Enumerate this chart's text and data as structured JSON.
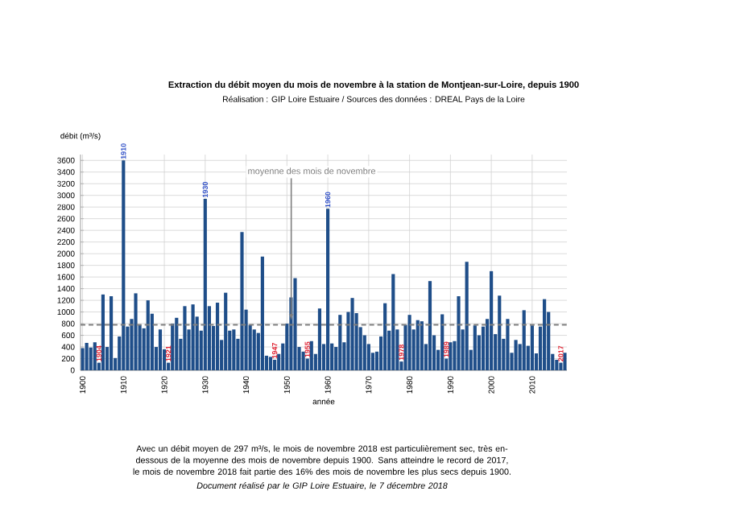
{
  "chart_data": {
    "type": "bar",
    "title": "Extraction du débit moyen du mois de novembre à la station de Montjean-sur-Loire, depuis 1900",
    "subtitle": "Réalisation : GIP Loire Estuaire / Sources des données : DREAL Pays de la Loire",
    "xlabel": "année",
    "ylabel": "débit (m³/s)",
    "x": [
      1900,
      1901,
      1902,
      1903,
      1904,
      1905,
      1906,
      1907,
      1908,
      1909,
      1910,
      1911,
      1912,
      1913,
      1914,
      1915,
      1916,
      1917,
      1918,
      1919,
      1920,
      1921,
      1922,
      1923,
      1924,
      1925,
      1926,
      1927,
      1928,
      1929,
      1930,
      1931,
      1932,
      1933,
      1934,
      1935,
      1936,
      1937,
      1938,
      1939,
      1940,
      1941,
      1942,
      1943,
      1944,
      1945,
      1946,
      1947,
      1948,
      1949,
      1950,
      1951,
      1952,
      1953,
      1954,
      1955,
      1956,
      1957,
      1958,
      1959,
      1960,
      1961,
      1962,
      1963,
      1964,
      1965,
      1966,
      1967,
      1968,
      1969,
      1970,
      1971,
      1972,
      1973,
      1974,
      1975,
      1976,
      1977,
      1978,
      1979,
      1980,
      1981,
      1982,
      1983,
      1984,
      1985,
      1986,
      1987,
      1988,
      1989,
      1990,
      1991,
      1992,
      1993,
      1994,
      1995,
      1996,
      1997,
      1998,
      1999,
      2000,
      2001,
      2002,
      2003,
      2004,
      2005,
      2006,
      2007,
      2008,
      2009,
      2010,
      2011,
      2012,
      2013,
      2014,
      2015,
      2016,
      2017,
      2018
    ],
    "values": [
      380,
      470,
      390,
      480,
      130,
      1300,
      400,
      1270,
      210,
      580,
      3600,
      750,
      880,
      1320,
      780,
      720,
      1200,
      970,
      400,
      700,
      360,
      130,
      800,
      900,
      540,
      1100,
      700,
      1130,
      920,
      680,
      2940,
      1100,
      760,
      1160,
      520,
      1330,
      680,
      700,
      540,
      2370,
      1040,
      780,
      700,
      640,
      1950,
      250,
      230,
      180,
      280,
      460,
      800,
      1250,
      1580,
      400,
      320,
      200,
      500,
      280,
      1060,
      450,
      2770,
      460,
      400,
      950,
      480,
      1000,
      1240,
      980,
      740,
      600,
      450,
      300,
      320,
      580,
      1150,
      680,
      1650,
      700,
      150,
      780,
      950,
      700,
      860,
      840,
      450,
      1530,
      600,
      350,
      960,
      200,
      480,
      500,
      1270,
      700,
      1860,
      350,
      770,
      600,
      750,
      880,
      1700,
      620,
      1280,
      540,
      880,
      300,
      520,
      450,
      1030,
      420,
      770,
      290,
      750,
      1220,
      1000,
      280,
      180,
      130,
      300
    ],
    "color": "#1f4e89",
    "xlim": [
      1899.5,
      2018.5
    ],
    "xticks": [
      1900,
      1910,
      1920,
      1930,
      1940,
      1950,
      1960,
      1970,
      1980,
      1990,
      2000,
      2010
    ],
    "ylim": [
      0,
      3700
    ],
    "yticks": [
      0,
      200,
      400,
      600,
      800,
      1000,
      1200,
      1400,
      1600,
      1800,
      2000,
      2200,
      2400,
      2600,
      2800,
      3000,
      3200,
      3400,
      3600
    ],
    "grid": true,
    "ref_lines": [
      {
        "axis": "y",
        "value": 780,
        "label": "moyenne des mois de novembre",
        "color": "#7f7f7f",
        "line_style": "dashed"
      }
    ],
    "annotations": [
      {
        "text": "1910",
        "x": 1910,
        "y": 3600
      },
      {
        "text": "1930",
        "x": 1930,
        "y": 2940
      },
      {
        "text": "1960",
        "x": 1960,
        "y": 2770
      },
      {
        "text": "1904",
        "x": 1904,
        "y": 130
      },
      {
        "text": "1921",
        "x": 1921,
        "y": 130
      },
      {
        "text": "1947",
        "x": 1947,
        "y": 180
      },
      {
        "text": "1955",
        "x": 1955,
        "y": 200
      },
      {
        "text": "1978",
        "x": 1978,
        "y": 150
      },
      {
        "text": "1989",
        "x": 1989,
        "y": 200
      },
      {
        "text": "2017",
        "x": 2017,
        "y": 130
      },
      "Avec un débit moyen de 297 m³/s, le mois de novembre 2018 est particulièrement sec, très en-dessous de la moyenne des mois de novembre depuis 1900. Sans atteindre le record de 2017, le mois de novembre 2018  fait partie des 16% des mois de novembre les plus secs depuis 1900.",
      "*Document réalisé par le GIP Loire Estuaire, le 7 décembre 2018*"
    ]
  }
}
